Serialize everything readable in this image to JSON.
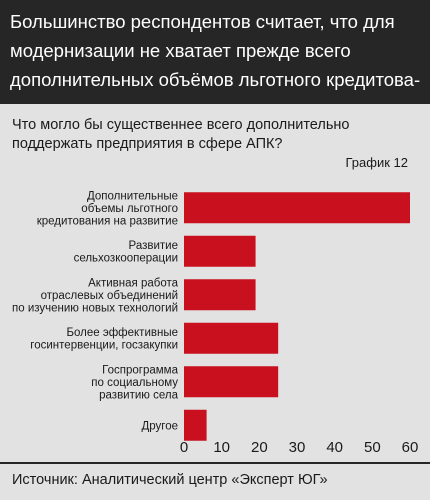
{
  "header": {
    "lines": [
      "Большинство респондентов считает, что для",
      "модернизации не хватает прежде всего",
      "дополнительных объёмов льготного кредитова-"
    ]
  },
  "question": {
    "lines": [
      "Что могло бы существеннее всего дополнительно",
      "поддержать предприятия в сфере АПК?"
    ]
  },
  "graph_label": "График 12",
  "footer": {
    "source": "Источник: Аналитический центр «Эксперт ЮГ»"
  },
  "colors": {
    "bar": "#c8101e",
    "header_bg": "#262626",
    "background": "#e2e2e2"
  },
  "chart_data": {
    "type": "bar",
    "orientation": "horizontal",
    "categories": [
      [
        "Дополнительные",
        "объемы льготного",
        "кредитования на развитие"
      ],
      [
        "Развитие",
        "сельхозкооперации"
      ],
      [
        "Активная работа",
        "отраслевых объединений",
        "по изучению новых технологий"
      ],
      [
        "Более эффективные",
        "госинтервенции, госзакупки"
      ],
      [
        "Госпрограмма",
        "по социальному",
        "развитию села"
      ],
      [
        "Другое"
      ]
    ],
    "values": [
      60,
      19,
      19,
      25,
      25,
      6
    ],
    "xlim": [
      0,
      60
    ],
    "xticks": [
      "0",
      "10",
      "20",
      "30",
      "40",
      "50",
      "60"
    ],
    "grid": false,
    "title": "",
    "xlabel": "",
    "ylabel": ""
  }
}
